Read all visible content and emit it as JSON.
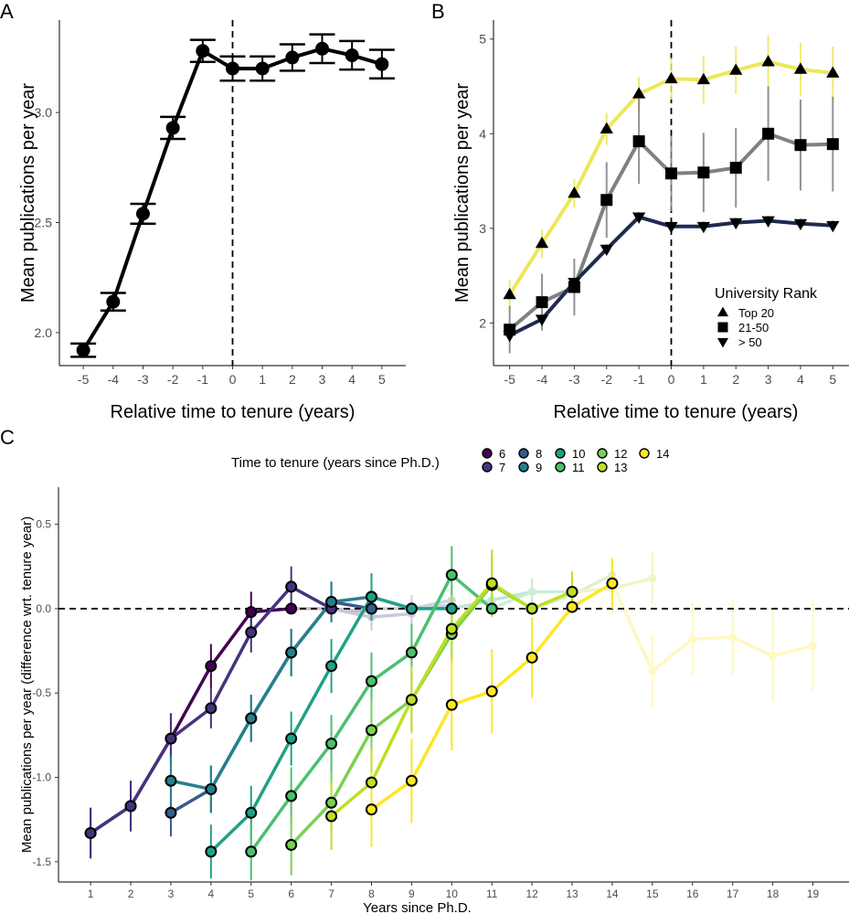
{
  "chart_data": [
    {
      "id": "A",
      "panel_label": "A",
      "type": "line",
      "ylabel": "Mean publications per year",
      "xlabel": "Relative time to tenure (years)",
      "x": [
        -5,
        -4,
        -3,
        -2,
        -1,
        0,
        1,
        2,
        3,
        4,
        5
      ],
      "xticks": [
        "-5",
        "-4",
        "-3",
        "-2",
        "-1",
        "0",
        "1",
        "2",
        "3",
        "4",
        "5"
      ],
      "yticks": [
        "2.0",
        "2.5",
        "3.0"
      ],
      "ylim": [
        1.85,
        3.42
      ],
      "xlim": [
        -5.8,
        5.8
      ],
      "tenure_line": 0,
      "series": [
        {
          "name": "All",
          "color": "#000000",
          "values": [
            1.92,
            2.14,
            2.54,
            2.93,
            3.28,
            3.2,
            3.2,
            3.25,
            3.29,
            3.26,
            3.22
          ],
          "err": [
            0.03,
            0.04,
            0.045,
            0.05,
            0.05,
            0.055,
            0.055,
            0.06,
            0.065,
            0.065,
            0.065
          ]
        }
      ]
    },
    {
      "id": "B",
      "panel_label": "B",
      "type": "line",
      "ylabel": "Mean publications per year",
      "xlabel": "Relative time to tenure (years)",
      "x": [
        -5,
        -4,
        -3,
        -2,
        -1,
        0,
        1,
        2,
        3,
        4,
        5
      ],
      "xticks": [
        "-5",
        "-4",
        "-3",
        "-2",
        "-1",
        "0",
        "1",
        "2",
        "3",
        "4",
        "5"
      ],
      "yticks": [
        "2",
        "3",
        "4",
        "5"
      ],
      "ylim": [
        1.55,
        5.2
      ],
      "xlim": [
        -5.5,
        5.5
      ],
      "tenure_line": 0,
      "legend_title": "University Rank",
      "legend_position": "bottom-right",
      "series": [
        {
          "name": "Top 20",
          "marker": "triangle-up",
          "color": "#ede75a",
          "values": [
            2.3,
            2.84,
            3.37,
            4.05,
            4.42,
            4.58,
            4.57,
            4.67,
            4.76,
            4.68,
            4.64
          ],
          "err": [
            0.15,
            0.15,
            0.15,
            0.17,
            0.18,
            0.22,
            0.25,
            0.25,
            0.28,
            0.28,
            0.28
          ]
        },
        {
          "name": "21-50",
          "marker": "square",
          "color": "#808080",
          "values": [
            1.93,
            2.22,
            2.38,
            3.3,
            3.92,
            3.58,
            3.59,
            3.64,
            4.0,
            3.88,
            3.89
          ],
          "err": [
            0.25,
            0.3,
            0.3,
            0.4,
            0.45,
            0.4,
            0.42,
            0.42,
            0.5,
            0.48,
            0.5
          ]
        },
        {
          "name": "> 50",
          "marker": "triangle-down",
          "color": "#1e2a50",
          "values": [
            1.87,
            2.04,
            2.43,
            2.78,
            3.12,
            3.02,
            3.02,
            3.06,
            3.08,
            3.05,
            3.03
          ],
          "err": [
            0.04,
            0.05,
            0.05,
            0.05,
            0.05,
            0.05,
            0.05,
            0.05,
            0.05,
            0.05,
            0.05
          ]
        }
      ]
    },
    {
      "id": "C",
      "panel_label": "C",
      "type": "line",
      "ylabel": "Mean publications per year (difference wrt. tenure year)",
      "xlabel": "Years since Ph.D.",
      "x_ticks": [
        "1",
        "2",
        "3",
        "4",
        "5",
        "6",
        "7",
        "8",
        "9",
        "10",
        "11",
        "12",
        "13",
        "14",
        "15",
        "16",
        "17",
        "18",
        "19"
      ],
      "yticks": [
        "-1.5",
        "-1.0",
        "-0.5",
        "0.0",
        "0.5"
      ],
      "ylim": [
        -1.62,
        0.72
      ],
      "xlim": [
        0.2,
        19.9
      ],
      "reference_line": 0,
      "legend_title": "Time to tenure (years since Ph.D.)",
      "legend_position": "top",
      "series": [
        {
          "name": "6",
          "tenure": 6,
          "color": "#440154",
          "start": 1,
          "values": [
            -1.33,
            -1.17,
            -0.77,
            -0.34,
            -0.02,
            0.0,
            0.0,
            -0.02
          ],
          "err": [
            0.15,
            0.15,
            0.15,
            0.13,
            0.12,
            0.0,
            0.08,
            0.08
          ]
        },
        {
          "name": "7",
          "tenure": 7,
          "color": "#46337e",
          "start": 1,
          "values": [
            -1.33,
            -1.17,
            -0.77,
            -0.59,
            -0.14,
            0.13,
            0.0,
            -0.05,
            -0.03
          ],
          "err": [
            0.15,
            0.15,
            0.15,
            0.12,
            0.12,
            0.12,
            0.0,
            0.08,
            0.08
          ]
        },
        {
          "name": "8",
          "tenure": 8,
          "color": "#365c8d",
          "start": 3,
          "values": [
            -1.21,
            -1.07,
            -0.65,
            -0.26,
            0.04,
            0.0,
            0.0,
            0.02
          ],
          "err": [
            0.14,
            0.14,
            0.14,
            0.14,
            0.12,
            0.0,
            0.08,
            0.08
          ]
        },
        {
          "name": "9",
          "tenure": 9,
          "color": "#277f8e",
          "start": 3,
          "values": [
            -1.02,
            -1.07,
            -0.65,
            -0.26,
            0.04,
            0.07,
            0.0,
            0.05
          ],
          "err": [
            0.15,
            0.14,
            0.14,
            0.14,
            0.12,
            0.12,
            0.0,
            0.08
          ]
        },
        {
          "name": "10",
          "tenure": 10,
          "color": "#1fa187",
          "start": 4,
          "values": [
            -1.44,
            -1.21,
            -0.77,
            -0.34,
            0.07,
            0.0,
            0.0,
            0.05,
            0.1
          ],
          "err": [
            0.16,
            0.16,
            0.16,
            0.16,
            0.14,
            0.0,
            0.0,
            0.08,
            0.08
          ]
        },
        {
          "name": "11",
          "tenure": 11,
          "color": "#4ac16d",
          "start": 5,
          "values": [
            -1.44,
            -1.11,
            -0.8,
            -0.43,
            -0.26,
            0.2,
            0.0,
            0.1,
            0.1
          ],
          "err": [
            0.17,
            0.17,
            0.17,
            0.17,
            0.17,
            0.17,
            0.0,
            0.08,
            0.08
          ]
        },
        {
          "name": "12",
          "tenure": 12,
          "color": "#7ad151",
          "start": 6,
          "values": [
            -1.4,
            -1.15,
            -0.72,
            -0.54,
            -0.15,
            0.14,
            0.0,
            0.08,
            0.2
          ],
          "err": [
            0.18,
            0.18,
            0.18,
            0.18,
            0.18,
            0.18,
            0.0,
            0.1,
            0.1
          ]
        },
        {
          "name": "13",
          "tenure": 13,
          "color": "#bddf26",
          "start": 7,
          "values": [
            -1.23,
            -1.03,
            -0.54,
            -0.12,
            0.15,
            0.0,
            0.1,
            0.12,
            0.18
          ],
          "err": [
            0.2,
            0.2,
            0.2,
            0.2,
            0.2,
            0.0,
            0.12,
            0.15,
            0.15
          ]
        },
        {
          "name": "14",
          "tenure": 14,
          "color": "#fde725",
          "start": 8,
          "values": [
            -1.19,
            -1.02,
            -0.57,
            -0.49,
            -0.29,
            0.01,
            0.15,
            -0.37,
            -0.18,
            -0.17,
            -0.28,
            -0.22
          ],
          "err": [
            0.22,
            0.25,
            0.27,
            0.25,
            0.24,
            0.0,
            0.15,
            0.22,
            0.22,
            0.22,
            0.27,
            0.27
          ]
        }
      ]
    }
  ]
}
